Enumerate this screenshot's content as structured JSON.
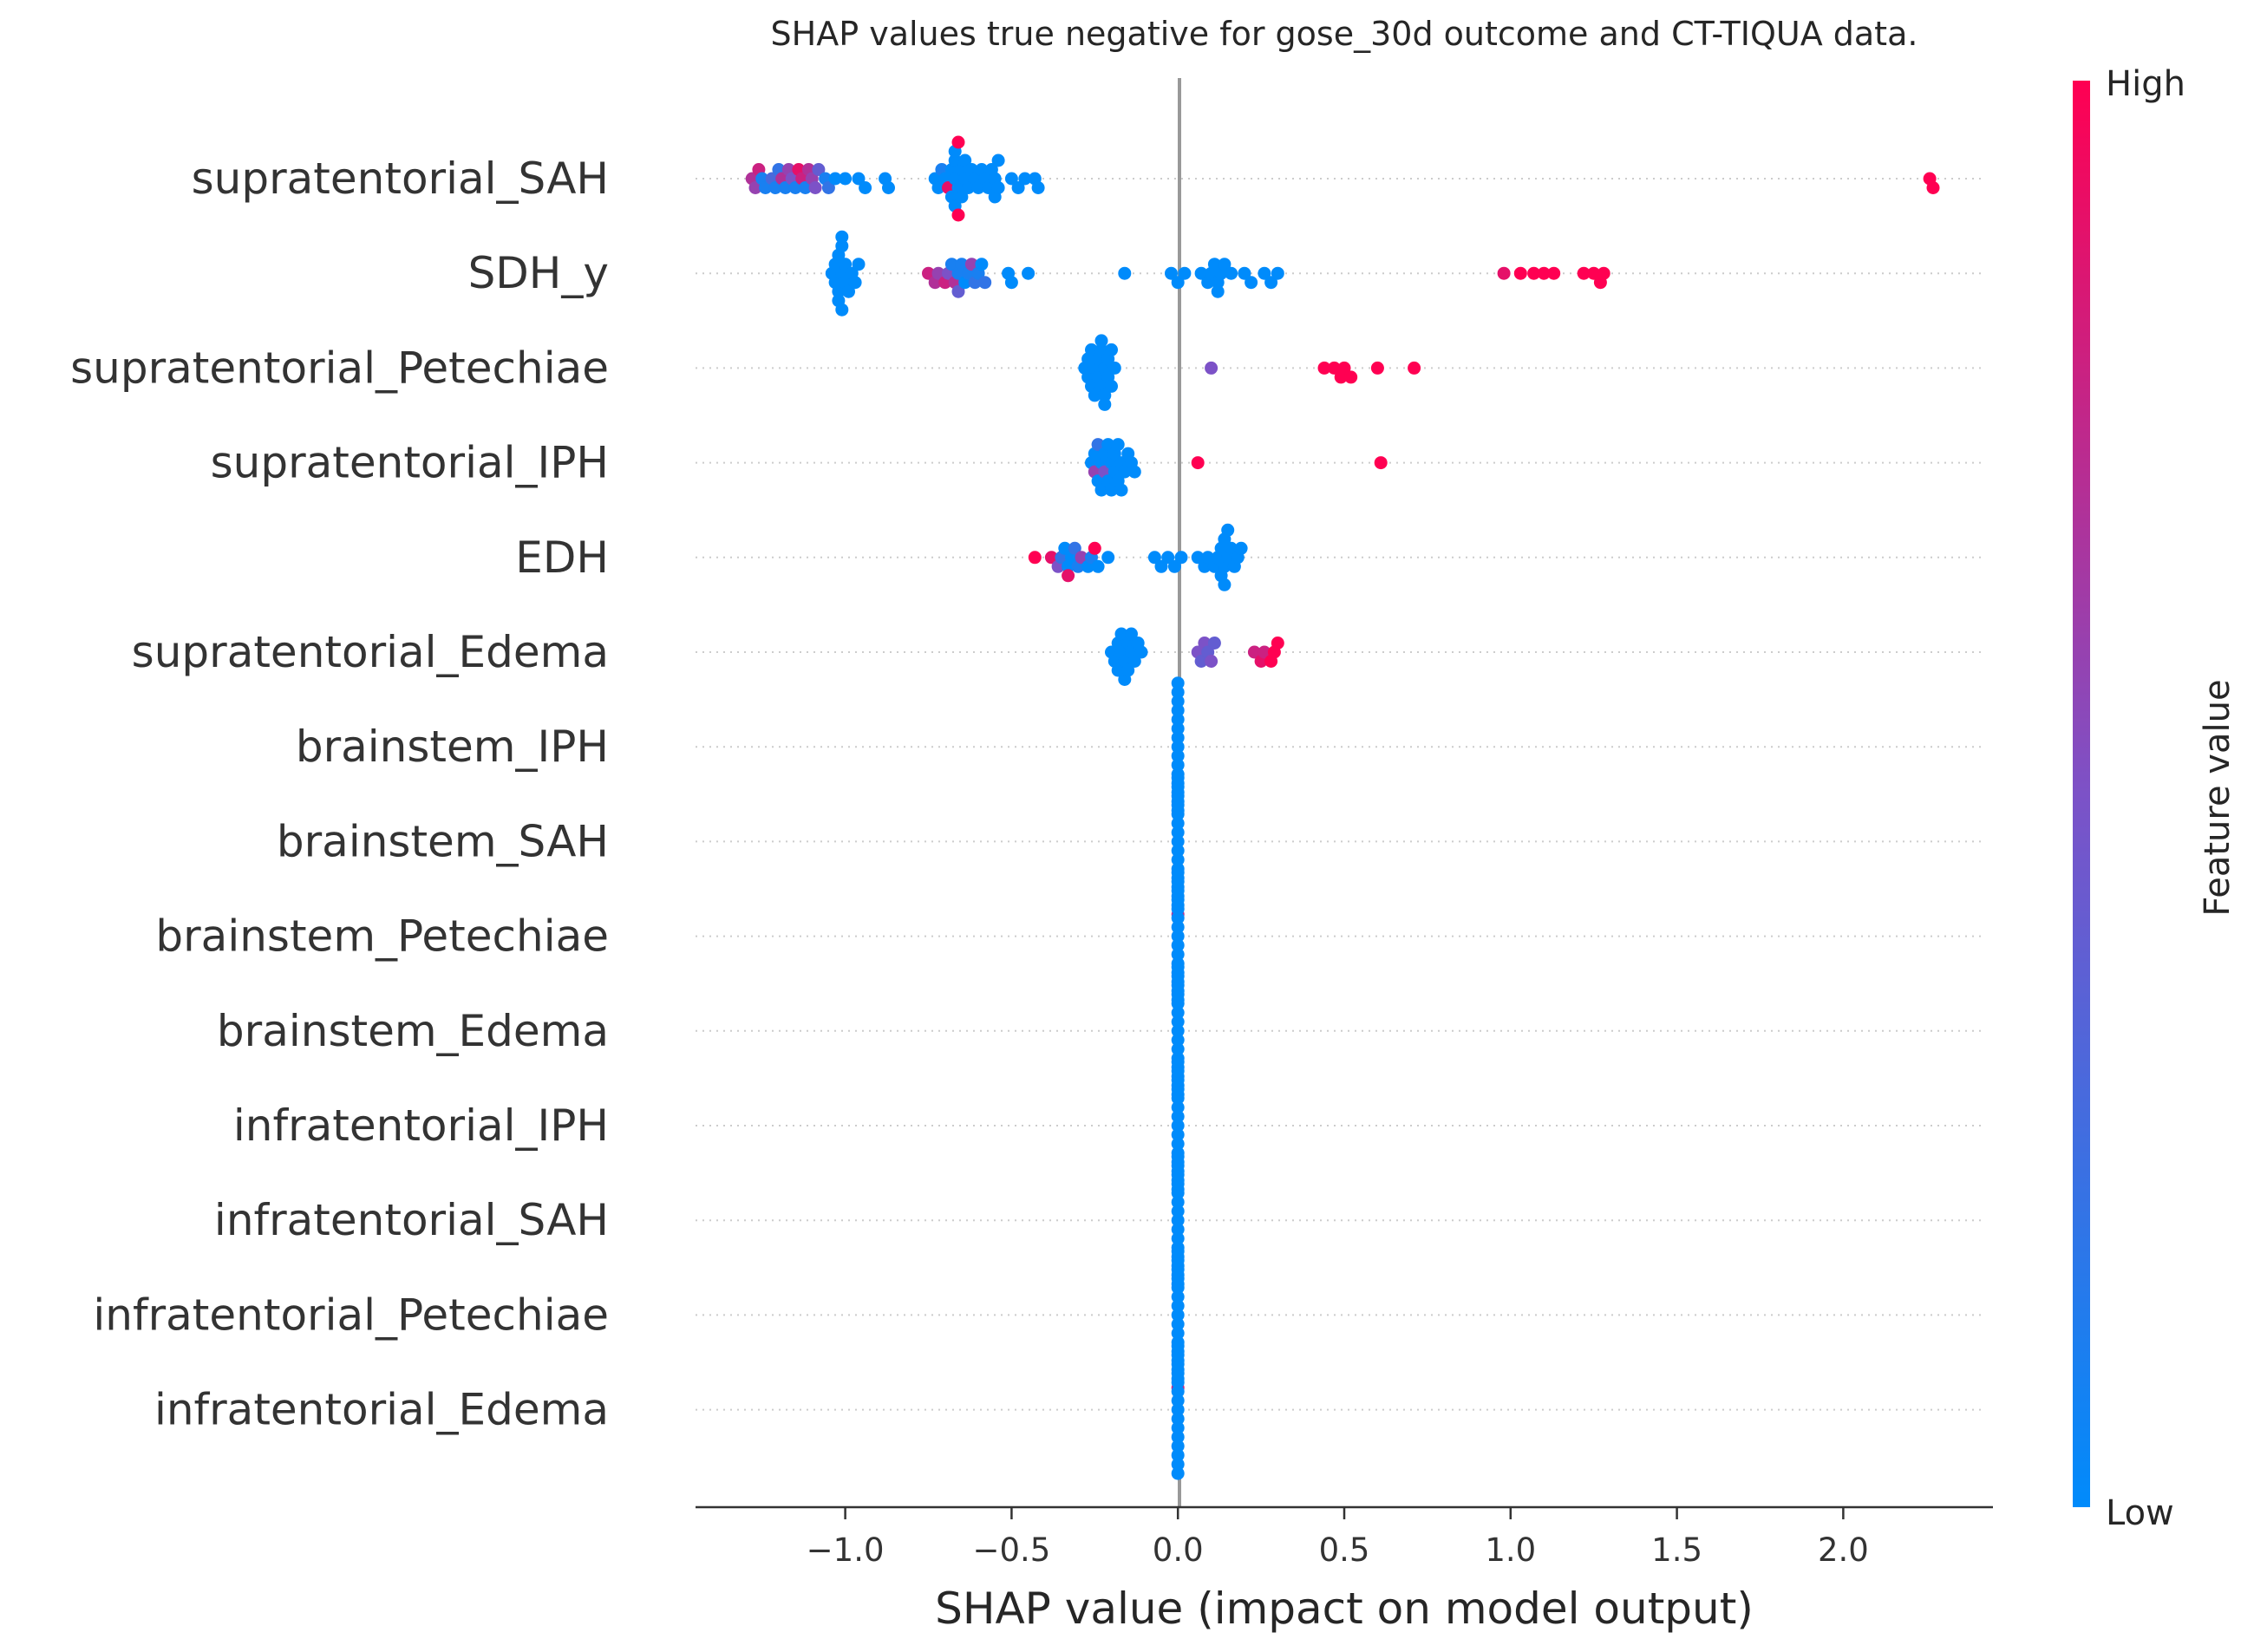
{
  "chart_data": {
    "type": "scatter",
    "subtype": "shap-beeswarm",
    "title": "SHAP values true negative for gose_30d outcome and CT-TIQUA data.",
    "xlabel": "SHAP value (impact on model output)",
    "xlim": [
      -1.45,
      2.45
    ],
    "xticks": [
      -1.0,
      -0.5,
      0.0,
      0.5,
      1.0,
      1.5,
      2.0
    ],
    "xtick_labels": [
      "−1.0",
      "−0.5",
      "0.0",
      "0.5",
      "1.0",
      "1.5",
      "2.0"
    ],
    "colorbar": {
      "label": "Feature value",
      "high_label": "High",
      "low_label": "Low",
      "low_color": "#008bfb",
      "high_color": "#ff0052"
    },
    "colors": {
      "low": "#008bfb",
      "high": "#ff0052",
      "zero_line": "#999999",
      "grid": "#cccccc"
    },
    "features": [
      {
        "name": "supratentorial_SAH",
        "points": [
          {
            "x": -1.28,
            "v": 0.7
          },
          {
            "x": -1.27,
            "v": 0.6
          },
          {
            "x": -1.26,
            "v": 0.8
          },
          {
            "x": -1.25,
            "v": 0.1
          },
          {
            "x": -1.24,
            "v": 0.1
          },
          {
            "x": -1.22,
            "v": 0.3
          },
          {
            "x": -1.21,
            "v": 0.1
          },
          {
            "x": -1.2,
            "v": 0.2
          },
          {
            "x": -1.19,
            "v": 0.7
          },
          {
            "x": -1.18,
            "v": 0.1
          },
          {
            "x": -1.17,
            "v": 0.6
          },
          {
            "x": -1.16,
            "v": 0.5
          },
          {
            "x": -1.15,
            "v": 0.1
          },
          {
            "x": -1.14,
            "v": 0.9
          },
          {
            "x": -1.13,
            "v": 0.8
          },
          {
            "x": -1.12,
            "v": 0.1
          },
          {
            "x": -1.11,
            "v": 0.7
          },
          {
            "x": -1.1,
            "v": 0.6
          },
          {
            "x": -1.09,
            "v": 0.5
          },
          {
            "x": -1.08,
            "v": 0.4
          },
          {
            "x": -1.06,
            "v": 0.1
          },
          {
            "x": -1.05,
            "v": 0.2
          },
          {
            "x": -1.03,
            "v": 0.0
          },
          {
            "x": -1.0,
            "v": 0.0
          },
          {
            "x": -0.96,
            "v": 0.0
          },
          {
            "x": -0.94,
            "v": 0.0
          },
          {
            "x": -0.88,
            "v": 0.0
          },
          {
            "x": -0.87,
            "v": 0.0
          },
          {
            "x": -0.73,
            "v": 0.0
          },
          {
            "x": -0.72,
            "v": 0.0
          },
          {
            "x": -0.71,
            "v": 0.1
          },
          {
            "x": -0.7,
            "v": 0.0
          },
          {
            "x": -0.69,
            "v": 0.9
          },
          {
            "x": -0.68,
            "v": 0.0
          },
          {
            "x": -0.68,
            "v": 0.0
          },
          {
            "x": -0.67,
            "v": 0.0
          },
          {
            "x": -0.67,
            "v": 0.0
          },
          {
            "x": -0.67,
            "v": 0.0
          },
          {
            "x": -0.67,
            "v": 0.0
          },
          {
            "x": -0.66,
            "v": 0.0
          },
          {
            "x": -0.66,
            "v": 1.0
          },
          {
            "x": -0.66,
            "v": 1.0
          },
          {
            "x": -0.65,
            "v": 0.0
          },
          {
            "x": -0.65,
            "v": 0.0
          },
          {
            "x": -0.64,
            "v": 0.0
          },
          {
            "x": -0.64,
            "v": 0.0
          },
          {
            "x": -0.63,
            "v": 0.0
          },
          {
            "x": -0.62,
            "v": 0.0
          },
          {
            "x": -0.61,
            "v": 0.0
          },
          {
            "x": -0.6,
            "v": 0.0
          },
          {
            "x": -0.59,
            "v": 0.0
          },
          {
            "x": -0.58,
            "v": 0.0
          },
          {
            "x": -0.57,
            "v": 0.0
          },
          {
            "x": -0.56,
            "v": 0.0
          },
          {
            "x": -0.55,
            "v": 0.0
          },
          {
            "x": -0.55,
            "v": 0.0
          },
          {
            "x": -0.54,
            "v": 0.0
          },
          {
            "x": -0.54,
            "v": 0.0
          },
          {
            "x": -0.5,
            "v": 0.0
          },
          {
            "x": -0.48,
            "v": 0.0
          },
          {
            "x": -0.46,
            "v": 0.0
          },
          {
            "x": -0.43,
            "v": 0.0
          },
          {
            "x": -0.42,
            "v": 0.0
          },
          {
            "x": 2.26,
            "v": 1.0
          },
          {
            "x": 2.27,
            "v": 1.0
          }
        ]
      },
      {
        "name": "SDH_y",
        "points": [
          {
            "x": -1.04,
            "v": 0.0
          },
          {
            "x": -1.03,
            "v": 0.0
          },
          {
            "x": -1.03,
            "v": 0.0
          },
          {
            "x": -1.02,
            "v": 0.0
          },
          {
            "x": -1.02,
            "v": 0.0
          },
          {
            "x": -1.02,
            "v": 0.0
          },
          {
            "x": -1.01,
            "v": 0.0
          },
          {
            "x": -1.01,
            "v": 0.0
          },
          {
            "x": -1.01,
            "v": 0.0
          },
          {
            "x": -1.01,
            "v": 0.0
          },
          {
            "x": -1.0,
            "v": 0.0
          },
          {
            "x": -1.0,
            "v": 0.0
          },
          {
            "x": -0.99,
            "v": 0.0
          },
          {
            "x": -0.98,
            "v": 0.0
          },
          {
            "x": -0.97,
            "v": 0.0
          },
          {
            "x": -0.96,
            "v": 0.0
          },
          {
            "x": -0.75,
            "v": 0.8
          },
          {
            "x": -0.73,
            "v": 0.7
          },
          {
            "x": -0.72,
            "v": 0.6
          },
          {
            "x": -0.7,
            "v": 0.8
          },
          {
            "x": -0.69,
            "v": 0.5
          },
          {
            "x": -0.68,
            "v": 0.1
          },
          {
            "x": -0.67,
            "v": 0.7
          },
          {
            "x": -0.66,
            "v": 0.1
          },
          {
            "x": -0.66,
            "v": 0.4
          },
          {
            "x": -0.65,
            "v": 0.1
          },
          {
            "x": -0.64,
            "v": 0.0
          },
          {
            "x": -0.63,
            "v": 0.1
          },
          {
            "x": -0.62,
            "v": 0.6
          },
          {
            "x": -0.61,
            "v": 0.2
          },
          {
            "x": -0.6,
            "v": 0.1
          },
          {
            "x": -0.59,
            "v": 0.0
          },
          {
            "x": -0.58,
            "v": 0.2
          },
          {
            "x": -0.51,
            "v": 0.0
          },
          {
            "x": -0.5,
            "v": 0.0
          },
          {
            "x": -0.45,
            "v": 0.0
          },
          {
            "x": -0.16,
            "v": 0.0
          },
          {
            "x": -0.02,
            "v": 0.0
          },
          {
            "x": 0.0,
            "v": 0.0
          },
          {
            "x": 0.02,
            "v": 0.0
          },
          {
            "x": 0.07,
            "v": 0.0
          },
          {
            "x": 0.09,
            "v": 0.0
          },
          {
            "x": 0.1,
            "v": 0.0
          },
          {
            "x": 0.11,
            "v": 0.0
          },
          {
            "x": 0.12,
            "v": 0.0
          },
          {
            "x": 0.12,
            "v": 0.0
          },
          {
            "x": 0.13,
            "v": 0.0
          },
          {
            "x": 0.14,
            "v": 0.0
          },
          {
            "x": 0.16,
            "v": 0.0
          },
          {
            "x": 0.2,
            "v": 0.0
          },
          {
            "x": 0.22,
            "v": 0.0
          },
          {
            "x": 0.26,
            "v": 0.0
          },
          {
            "x": 0.28,
            "v": 0.0
          },
          {
            "x": 0.3,
            "v": 0.0
          },
          {
            "x": 0.98,
            "v": 0.9
          },
          {
            "x": 1.03,
            "v": 1.0
          },
          {
            "x": 1.07,
            "v": 1.0
          },
          {
            "x": 1.1,
            "v": 1.0
          },
          {
            "x": 1.13,
            "v": 1.0
          },
          {
            "x": 1.22,
            "v": 1.0
          },
          {
            "x": 1.25,
            "v": 1.0
          },
          {
            "x": 1.27,
            "v": 1.0
          },
          {
            "x": 1.28,
            "v": 1.0
          }
        ]
      },
      {
        "name": "supratentorial_Petechiae",
        "points": [
          {
            "x": -0.28,
            "v": 0.0
          },
          {
            "x": -0.27,
            "v": 0.0
          },
          {
            "x": -0.27,
            "v": 0.0
          },
          {
            "x": -0.26,
            "v": 0.0
          },
          {
            "x": -0.26,
            "v": 0.0
          },
          {
            "x": -0.25,
            "v": 0.0
          },
          {
            "x": -0.25,
            "v": 0.0
          },
          {
            "x": -0.24,
            "v": 0.0
          },
          {
            "x": -0.24,
            "v": 0.0
          },
          {
            "x": -0.23,
            "v": 0.0
          },
          {
            "x": -0.23,
            "v": 0.0
          },
          {
            "x": -0.23,
            "v": 0.0
          },
          {
            "x": -0.22,
            "v": 0.0
          },
          {
            "x": -0.22,
            "v": 0.0
          },
          {
            "x": -0.22,
            "v": 0.0
          },
          {
            "x": -0.21,
            "v": 0.0
          },
          {
            "x": -0.21,
            "v": 0.0
          },
          {
            "x": -0.2,
            "v": 0.0
          },
          {
            "x": -0.2,
            "v": 0.0
          },
          {
            "x": -0.19,
            "v": 0.0
          },
          {
            "x": 0.1,
            "v": 0.5
          },
          {
            "x": 0.44,
            "v": 1.0
          },
          {
            "x": 0.47,
            "v": 1.0
          },
          {
            "x": 0.49,
            "v": 1.0
          },
          {
            "x": 0.5,
            "v": 1.0
          },
          {
            "x": 0.52,
            "v": 1.0
          },
          {
            "x": 0.6,
            "v": 1.0
          },
          {
            "x": 0.71,
            "v": 1.0
          }
        ]
      },
      {
        "name": "supratentorial_IPH",
        "points": [
          {
            "x": -0.26,
            "v": 0.0
          },
          {
            "x": -0.25,
            "v": 0.6
          },
          {
            "x": -0.25,
            "v": 0.0
          },
          {
            "x": -0.24,
            "v": 0.0
          },
          {
            "x": -0.24,
            "v": 0.2
          },
          {
            "x": -0.23,
            "v": 0.0
          },
          {
            "x": -0.23,
            "v": 0.0
          },
          {
            "x": -0.22,
            "v": 0.5
          },
          {
            "x": -0.22,
            "v": 0.0
          },
          {
            "x": -0.21,
            "v": 0.0
          },
          {
            "x": -0.21,
            "v": 0.0
          },
          {
            "x": -0.2,
            "v": 0.0
          },
          {
            "x": -0.2,
            "v": 0.0
          },
          {
            "x": -0.19,
            "v": 0.0
          },
          {
            "x": -0.19,
            "v": 0.0
          },
          {
            "x": -0.18,
            "v": 0.0
          },
          {
            "x": -0.18,
            "v": 0.0
          },
          {
            "x": -0.17,
            "v": 0.0
          },
          {
            "x": -0.17,
            "v": 0.0
          },
          {
            "x": -0.16,
            "v": 0.0
          },
          {
            "x": -0.15,
            "v": 0.0
          },
          {
            "x": -0.14,
            "v": 0.0
          },
          {
            "x": -0.13,
            "v": 0.0
          },
          {
            "x": 0.06,
            "v": 1.0
          },
          {
            "x": 0.61,
            "v": 1.0
          }
        ]
      },
      {
        "name": "EDH",
        "points": [
          {
            "x": -0.43,
            "v": 1.0
          },
          {
            "x": -0.38,
            "v": 0.9
          },
          {
            "x": -0.36,
            "v": 0.5
          },
          {
            "x": -0.35,
            "v": 0.2
          },
          {
            "x": -0.34,
            "v": 0.0
          },
          {
            "x": -0.33,
            "v": 0.0
          },
          {
            "x": -0.33,
            "v": 0.9
          },
          {
            "x": -0.32,
            "v": 0.0
          },
          {
            "x": -0.31,
            "v": 0.2
          },
          {
            "x": -0.3,
            "v": 0.1
          },
          {
            "x": -0.29,
            "v": 0.6
          },
          {
            "x": -0.27,
            "v": 0.0
          },
          {
            "x": -0.26,
            "v": 0.1
          },
          {
            "x": -0.25,
            "v": 1.0
          },
          {
            "x": -0.24,
            "v": 0.0
          },
          {
            "x": -0.21,
            "v": 0.0
          },
          {
            "x": -0.07,
            "v": 0.0
          },
          {
            "x": -0.05,
            "v": 0.0
          },
          {
            "x": -0.03,
            "v": 0.0
          },
          {
            "x": -0.01,
            "v": 0.0
          },
          {
            "x": 0.01,
            "v": 0.0
          },
          {
            "x": 0.06,
            "v": 0.0
          },
          {
            "x": 0.08,
            "v": 0.0
          },
          {
            "x": 0.09,
            "v": 0.0
          },
          {
            "x": 0.11,
            "v": 0.0
          },
          {
            "x": 0.12,
            "v": 0.0
          },
          {
            "x": 0.13,
            "v": 0.0
          },
          {
            "x": 0.13,
            "v": 0.0
          },
          {
            "x": 0.14,
            "v": 0.0
          },
          {
            "x": 0.14,
            "v": 0.0
          },
          {
            "x": 0.14,
            "v": 0.0
          },
          {
            "x": 0.15,
            "v": 0.0
          },
          {
            "x": 0.15,
            "v": 0.0
          },
          {
            "x": 0.16,
            "v": 0.0
          },
          {
            "x": 0.17,
            "v": 0.0
          },
          {
            "x": 0.18,
            "v": 0.0
          },
          {
            "x": 0.19,
            "v": 0.0
          }
        ]
      },
      {
        "name": "supratentorial_Edema",
        "points": [
          {
            "x": -0.2,
            "v": 0.0
          },
          {
            "x": -0.19,
            "v": 0.0
          },
          {
            "x": -0.18,
            "v": 0.0
          },
          {
            "x": -0.18,
            "v": 0.0
          },
          {
            "x": -0.17,
            "v": 0.0
          },
          {
            "x": -0.17,
            "v": 0.0
          },
          {
            "x": -0.16,
            "v": 0.0
          },
          {
            "x": -0.16,
            "v": 0.0
          },
          {
            "x": -0.15,
            "v": 0.0
          },
          {
            "x": -0.15,
            "v": 0.0
          },
          {
            "x": -0.14,
            "v": 0.0
          },
          {
            "x": -0.14,
            "v": 0.0
          },
          {
            "x": -0.13,
            "v": 0.0
          },
          {
            "x": -0.12,
            "v": 0.0
          },
          {
            "x": -0.11,
            "v": 0.0
          },
          {
            "x": 0.06,
            "v": 0.5
          },
          {
            "x": 0.07,
            "v": 0.4
          },
          {
            "x": 0.08,
            "v": 0.5
          },
          {
            "x": 0.09,
            "v": 0.4
          },
          {
            "x": 0.1,
            "v": 0.5
          },
          {
            "x": 0.11,
            "v": 0.4
          },
          {
            "x": 0.23,
            "v": 0.8
          },
          {
            "x": 0.25,
            "v": 0.9
          },
          {
            "x": 0.26,
            "v": 0.8
          },
          {
            "x": 0.28,
            "v": 1.0
          },
          {
            "x": 0.29,
            "v": 1.0
          },
          {
            "x": 0.3,
            "v": 1.0
          }
        ]
      },
      {
        "name": "brainstem_IPH",
        "points": [
          {
            "x": 0.0,
            "v": 0.0,
            "n": 15
          }
        ]
      },
      {
        "name": "brainstem_SAH",
        "points": [
          {
            "x": 0.0,
            "v": 0.0,
            "n": 15
          },
          {
            "x": 0.0,
            "v": 0.7
          }
        ]
      },
      {
        "name": "brainstem_Petechiae",
        "points": [
          {
            "x": 0.0,
            "v": 0.0,
            "n": 15
          }
        ]
      },
      {
        "name": "brainstem_Edema",
        "points": [
          {
            "x": 0.0,
            "v": 0.0,
            "n": 15
          }
        ]
      },
      {
        "name": "infratentorial_IPH",
        "points": [
          {
            "x": 0.0,
            "v": 0.0,
            "n": 15
          }
        ]
      },
      {
        "name": "infratentorial_SAH",
        "points": [
          {
            "x": 0.0,
            "v": 0.0,
            "n": 15
          }
        ]
      },
      {
        "name": "infratentorial_Petechiae",
        "points": [
          {
            "x": 0.0,
            "v": 0.0,
            "n": 15
          },
          {
            "x": 0.0,
            "v": 0.8
          }
        ]
      },
      {
        "name": "infratentorial_Edema",
        "points": [
          {
            "x": 0.0,
            "v": 0.0,
            "n": 15
          }
        ]
      }
    ]
  }
}
